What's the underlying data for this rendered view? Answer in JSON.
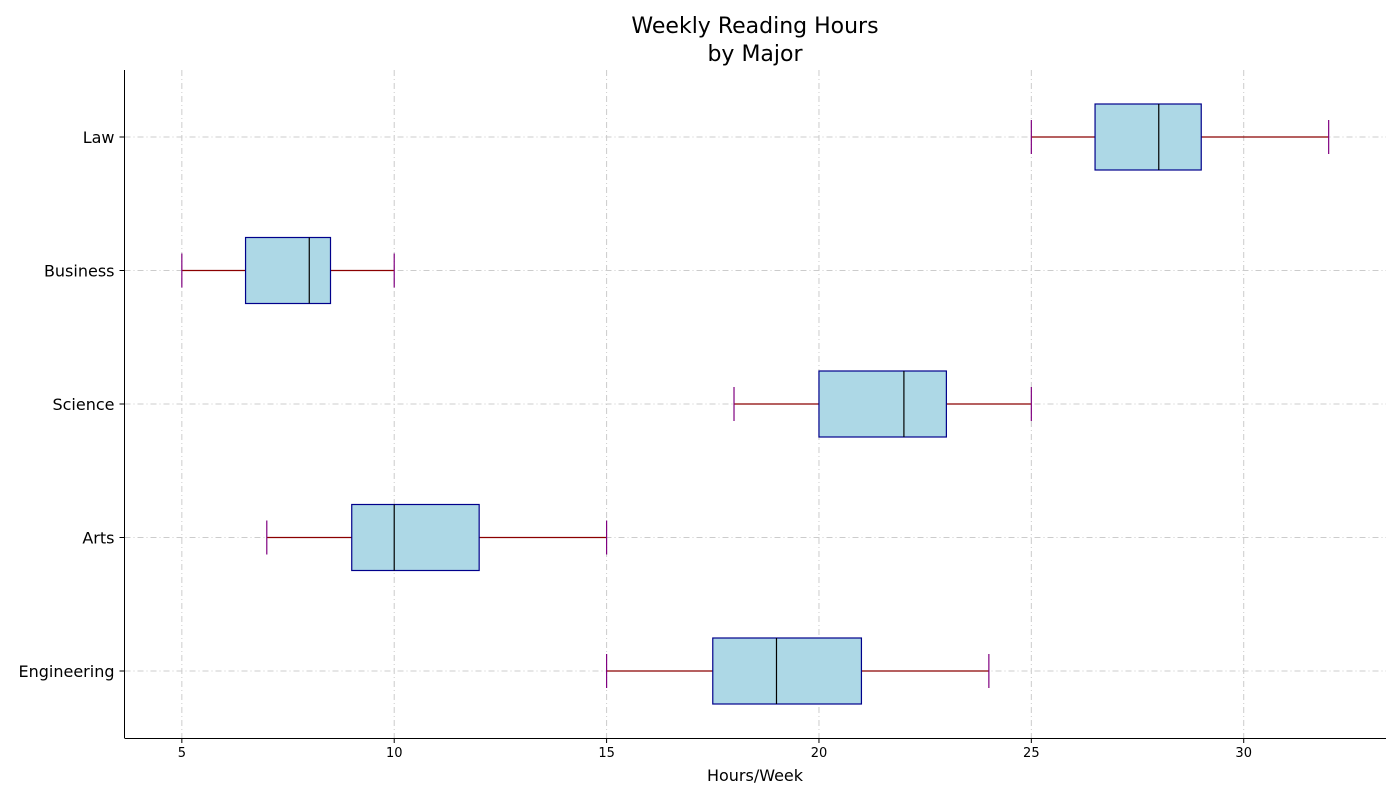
{
  "chart_data": {
    "type": "boxplot",
    "orientation": "horizontal",
    "title_lines": [
      "Weekly Reading Hours",
      "by Major"
    ],
    "xlabel": "Hours/Week",
    "ylabel": "",
    "categories": [
      "Engineering",
      "Arts",
      "Science",
      "Business",
      "Law"
    ],
    "boxes": [
      {
        "category": "Engineering",
        "whisker_low": 15,
        "q1": 17.5,
        "median": 19,
        "q3": 21,
        "whisker_high": 24
      },
      {
        "category": "Arts",
        "whisker_low": 7,
        "q1": 9,
        "median": 10,
        "q3": 12,
        "whisker_high": 15
      },
      {
        "category": "Science",
        "whisker_low": 18,
        "q1": 20,
        "median": 22,
        "q3": 23,
        "whisker_high": 25
      },
      {
        "category": "Business",
        "whisker_low": 5,
        "q1": 6.5,
        "median": 8,
        "q3": 8.5,
        "whisker_high": 10
      },
      {
        "category": "Law",
        "whisker_low": 25,
        "q1": 26.5,
        "median": 28,
        "q3": 29,
        "whisker_high": 32
      }
    ],
    "xlim": [
      3.65,
      33.35
    ],
    "xticks": [
      5,
      10,
      15,
      20,
      25,
      30
    ],
    "grid": true,
    "colors": {
      "box_fill": "#add8e6",
      "box_edge": "#00008b",
      "median": "#000000",
      "whisker": "#8b0000",
      "cap": "#800080",
      "grid": "#cccccc"
    }
  }
}
